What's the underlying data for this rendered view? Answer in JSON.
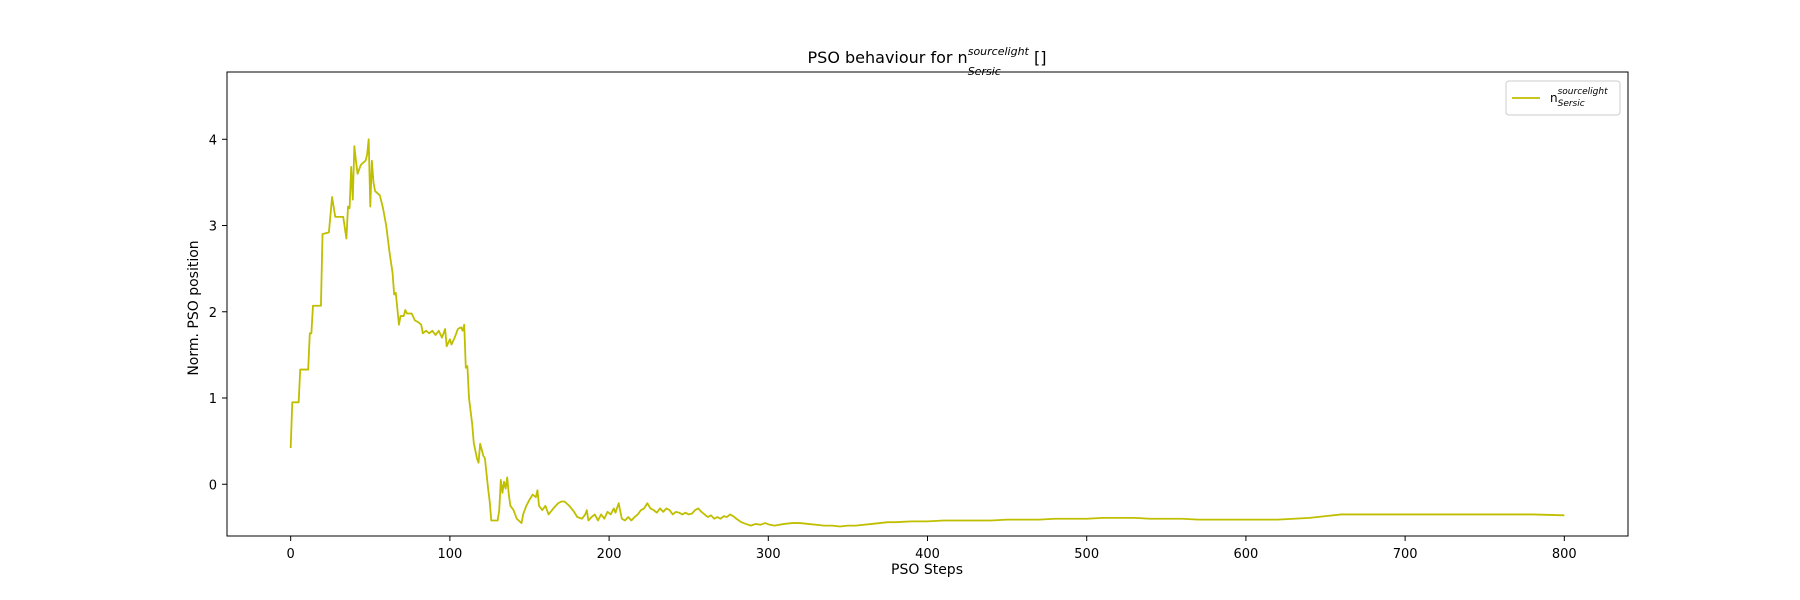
{
  "chart_data": {
    "type": "line",
    "title": {
      "prefix": "PSO behaviour for n",
      "superscript": "sourcelight",
      "subscript": "Sersic",
      "suffix": " []"
    },
    "xlabel": "PSO Steps",
    "ylabel": "Norm. PSO position",
    "xlim": [
      -40,
      840
    ],
    "ylim": [
      -0.6,
      4.78
    ],
    "xticks": [
      0,
      100,
      200,
      300,
      400,
      500,
      600,
      700,
      800
    ],
    "yticks": [
      0,
      1,
      2,
      3,
      4
    ],
    "grid": false,
    "legend_position": "top-right",
    "series": [
      {
        "name": {
          "base": "n",
          "superscript": "sourcelight",
          "subscript": "Sersic"
        },
        "color": "#bfbf00",
        "points": [
          [
            0,
            0.42
          ],
          [
            1,
            0.95
          ],
          [
            5,
            0.95
          ],
          [
            6,
            1.33
          ],
          [
            11,
            1.33
          ],
          [
            12,
            1.75
          ],
          [
            13,
            1.75
          ],
          [
            14,
            2.07
          ],
          [
            19,
            2.07
          ],
          [
            20,
            2.9
          ],
          [
            24,
            2.92
          ],
          [
            26,
            3.33
          ],
          [
            28,
            3.1
          ],
          [
            33,
            3.1
          ],
          [
            35,
            2.85
          ],
          [
            36,
            3.22
          ],
          [
            37,
            3.2
          ],
          [
            38,
            3.68
          ],
          [
            39,
            3.3
          ],
          [
            40,
            3.92
          ],
          [
            41,
            3.75
          ],
          [
            42,
            3.6
          ],
          [
            44,
            3.7
          ],
          [
            45,
            3.72
          ],
          [
            47,
            3.75
          ],
          [
            48,
            3.82
          ],
          [
            49,
            4.0
          ],
          [
            50,
            3.22
          ],
          [
            51,
            3.75
          ],
          [
            52,
            3.5
          ],
          [
            53,
            3.4
          ],
          [
            56,
            3.35
          ],
          [
            58,
            3.2
          ],
          [
            60,
            3.0
          ],
          [
            62,
            2.7
          ],
          [
            64,
            2.45
          ],
          [
            65,
            2.2
          ],
          [
            66,
            2.22
          ],
          [
            68,
            1.85
          ],
          [
            69,
            1.95
          ],
          [
            71,
            1.95
          ],
          [
            72,
            2.02
          ],
          [
            73,
            1.98
          ],
          [
            76,
            1.98
          ],
          [
            78,
            1.9
          ],
          [
            80,
            1.88
          ],
          [
            82,
            1.85
          ],
          [
            83,
            1.75
          ],
          [
            85,
            1.78
          ],
          [
            87,
            1.75
          ],
          [
            89,
            1.78
          ],
          [
            91,
            1.73
          ],
          [
            93,
            1.78
          ],
          [
            95,
            1.7
          ],
          [
            97,
            1.8
          ],
          [
            98,
            1.6
          ],
          [
            100,
            1.68
          ],
          [
            101,
            1.62
          ],
          [
            103,
            1.7
          ],
          [
            105,
            1.8
          ],
          [
            107,
            1.82
          ],
          [
            108,
            1.78
          ],
          [
            109,
            1.85
          ],
          [
            110,
            1.35
          ],
          [
            111,
            1.37
          ],
          [
            112,
            1.0
          ],
          [
            114,
            0.7
          ],
          [
            115,
            0.48
          ],
          [
            117,
            0.3
          ],
          [
            118,
            0.25
          ],
          [
            119,
            0.47
          ],
          [
            120,
            0.4
          ],
          [
            121,
            0.33
          ],
          [
            122,
            0.3
          ],
          [
            124,
            -0.05
          ],
          [
            125,
            -0.2
          ],
          [
            126,
            -0.42
          ],
          [
            130,
            -0.42
          ],
          [
            131,
            -0.3
          ],
          [
            132,
            0.05
          ],
          [
            133,
            -0.1
          ],
          [
            134,
            0.03
          ],
          [
            135,
            -0.05
          ],
          [
            136,
            0.08
          ],
          [
            137,
            -0.12
          ],
          [
            138,
            -0.25
          ],
          [
            140,
            -0.3
          ],
          [
            142,
            -0.4
          ],
          [
            145,
            -0.45
          ],
          [
            146,
            -0.35
          ],
          [
            148,
            -0.25
          ],
          [
            150,
            -0.18
          ],
          [
            152,
            -0.12
          ],
          [
            154,
            -0.15
          ],
          [
            155,
            -0.07
          ],
          [
            156,
            -0.25
          ],
          [
            158,
            -0.3
          ],
          [
            160,
            -0.25
          ],
          [
            162,
            -0.35
          ],
          [
            165,
            -0.28
          ],
          [
            168,
            -0.22
          ],
          [
            170,
            -0.2
          ],
          [
            172,
            -0.2
          ],
          [
            175,
            -0.25
          ],
          [
            178,
            -0.32
          ],
          [
            180,
            -0.38
          ],
          [
            183,
            -0.4
          ],
          [
            185,
            -0.35
          ],
          [
            186,
            -0.3
          ],
          [
            187,
            -0.42
          ],
          [
            189,
            -0.38
          ],
          [
            191,
            -0.35
          ],
          [
            193,
            -0.42
          ],
          [
            195,
            -0.35
          ],
          [
            197,
            -0.4
          ],
          [
            199,
            -0.32
          ],
          [
            201,
            -0.35
          ],
          [
            203,
            -0.28
          ],
          [
            204,
            -0.33
          ],
          [
            206,
            -0.22
          ],
          [
            208,
            -0.4
          ],
          [
            210,
            -0.42
          ],
          [
            212,
            -0.38
          ],
          [
            214,
            -0.42
          ],
          [
            216,
            -0.38
          ],
          [
            218,
            -0.35
          ],
          [
            220,
            -0.3
          ],
          [
            222,
            -0.28
          ],
          [
            224,
            -0.22
          ],
          [
            226,
            -0.28
          ],
          [
            228,
            -0.3
          ],
          [
            230,
            -0.33
          ],
          [
            232,
            -0.28
          ],
          [
            234,
            -0.32
          ],
          [
            236,
            -0.28
          ],
          [
            238,
            -0.3
          ],
          [
            240,
            -0.35
          ],
          [
            242,
            -0.32
          ],
          [
            244,
            -0.33
          ],
          [
            246,
            -0.35
          ],
          [
            248,
            -0.33
          ],
          [
            250,
            -0.35
          ],
          [
            252,
            -0.34
          ],
          [
            254,
            -0.3
          ],
          [
            256,
            -0.28
          ],
          [
            258,
            -0.32
          ],
          [
            260,
            -0.35
          ],
          [
            262,
            -0.38
          ],
          [
            264,
            -0.36
          ],
          [
            266,
            -0.4
          ],
          [
            268,
            -0.38
          ],
          [
            270,
            -0.4
          ],
          [
            272,
            -0.37
          ],
          [
            274,
            -0.38
          ],
          [
            276,
            -0.35
          ],
          [
            278,
            -0.37
          ],
          [
            280,
            -0.4
          ],
          [
            283,
            -0.44
          ],
          [
            286,
            -0.46
          ],
          [
            289,
            -0.48
          ],
          [
            292,
            -0.46
          ],
          [
            295,
            -0.47
          ],
          [
            298,
            -0.45
          ],
          [
            301,
            -0.47
          ],
          [
            304,
            -0.48
          ],
          [
            307,
            -0.47
          ],
          [
            310,
            -0.46
          ],
          [
            315,
            -0.45
          ],
          [
            320,
            -0.45
          ],
          [
            325,
            -0.46
          ],
          [
            330,
            -0.47
          ],
          [
            335,
            -0.48
          ],
          [
            340,
            -0.48
          ],
          [
            345,
            -0.49
          ],
          [
            350,
            -0.48
          ],
          [
            355,
            -0.48
          ],
          [
            360,
            -0.47
          ],
          [
            365,
            -0.46
          ],
          [
            370,
            -0.45
          ],
          [
            375,
            -0.44
          ],
          [
            380,
            -0.44
          ],
          [
            390,
            -0.43
          ],
          [
            400,
            -0.43
          ],
          [
            410,
            -0.42
          ],
          [
            420,
            -0.42
          ],
          [
            430,
            -0.42
          ],
          [
            440,
            -0.42
          ],
          [
            450,
            -0.41
          ],
          [
            460,
            -0.41
          ],
          [
            470,
            -0.41
          ],
          [
            480,
            -0.4
          ],
          [
            490,
            -0.4
          ],
          [
            500,
            -0.4
          ],
          [
            510,
            -0.39
          ],
          [
            520,
            -0.39
          ],
          [
            530,
            -0.39
          ],
          [
            540,
            -0.4
          ],
          [
            550,
            -0.4
          ],
          [
            560,
            -0.4
          ],
          [
            570,
            -0.41
          ],
          [
            580,
            -0.41
          ],
          [
            590,
            -0.41
          ],
          [
            600,
            -0.41
          ],
          [
            610,
            -0.41
          ],
          [
            620,
            -0.41
          ],
          [
            630,
            -0.4
          ],
          [
            640,
            -0.39
          ],
          [
            650,
            -0.37
          ],
          [
            660,
            -0.35
          ],
          [
            670,
            -0.35
          ],
          [
            680,
            -0.35
          ],
          [
            690,
            -0.35
          ],
          [
            700,
            -0.35
          ],
          [
            720,
            -0.35
          ],
          [
            740,
            -0.35
          ],
          [
            760,
            -0.35
          ],
          [
            780,
            -0.35
          ],
          [
            800,
            -0.36
          ]
        ]
      }
    ]
  }
}
